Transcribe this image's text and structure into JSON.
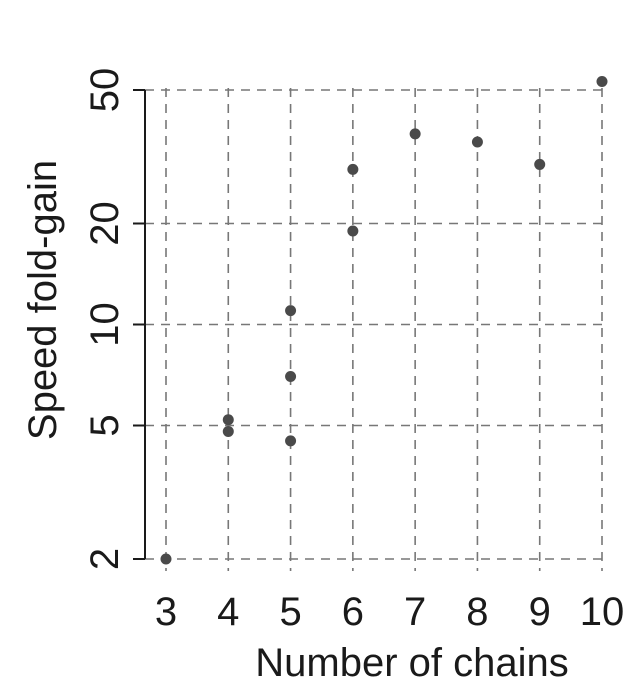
{
  "chart_data": {
    "type": "scatter",
    "title": "",
    "xlabel": "Number of chains",
    "ylabel": "Speed fold-gain",
    "xlim": [
      3,
      10
    ],
    "ylim": [
      2,
      50
    ],
    "yscale": "log",
    "grid": true,
    "grid_style": "dashed",
    "x_ticks": [
      3,
      4,
      5,
      6,
      7,
      8,
      9,
      10
    ],
    "x_tick_labels": [
      "3",
      "4",
      "5",
      "6",
      "7",
      "8",
      "9",
      "10"
    ],
    "y_ticks": [
      2,
      5,
      10,
      20,
      50
    ],
    "y_tick_labels": [
      "2",
      "5",
      "10",
      "20",
      "50"
    ],
    "marker_color": "#4a4a4a",
    "grid_color": "#777777",
    "points": [
      {
        "x": 3,
        "y": 2.0
      },
      {
        "x": 4,
        "y": 5.2
      },
      {
        "x": 4,
        "y": 4.8
      },
      {
        "x": 5,
        "y": 11.0
      },
      {
        "x": 5,
        "y": 7.0
      },
      {
        "x": 5,
        "y": 4.5
      },
      {
        "x": 6,
        "y": 29.0
      },
      {
        "x": 6,
        "y": 19.0
      },
      {
        "x": 7,
        "y": 37.0
      },
      {
        "x": 8,
        "y": 35.0
      },
      {
        "x": 9,
        "y": 30.0
      },
      {
        "x": 10,
        "y": 53.0
      }
    ]
  }
}
